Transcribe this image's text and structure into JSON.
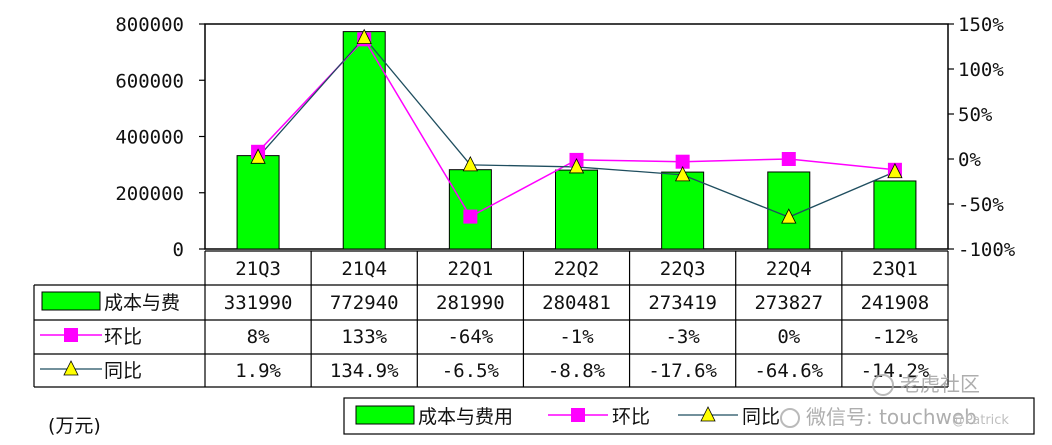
{
  "chart_data": {
    "type": "bar",
    "categories": [
      "21Q3",
      "21Q4",
      "22Q1",
      "22Q2",
      "22Q3",
      "22Q4",
      "23Q1"
    ],
    "ylim": [
      0,
      800000
    ],
    "y_ticks": [
      "800000",
      "600000",
      "400000",
      "200000",
      "0"
    ],
    "y2lim": [
      -100,
      150
    ],
    "y2_ticks": [
      "150%",
      "100%",
      "50%",
      "0%",
      "-50%",
      "-100%"
    ],
    "unit_label": "(万元)",
    "series": [
      {
        "name": "成本与费用",
        "kind": "bar",
        "values": [
          331990,
          772940,
          281990,
          280481,
          273419,
          273827,
          241908
        ],
        "labels": [
          "331990",
          "772940",
          "281990",
          "280481",
          "273419",
          "273827",
          "241908"
        ],
        "table_label": "成本与费"
      },
      {
        "name": "环比",
        "kind": "line",
        "axis": "right",
        "values": [
          8,
          133,
          -64,
          -1,
          -3,
          0,
          -12
        ],
        "labels": [
          "8%",
          "133%",
          "-64%",
          "-1%",
          "-3%",
          "0%",
          "-12%"
        ],
        "table_label": "环比"
      },
      {
        "name": "同比",
        "kind": "line",
        "axis": "right",
        "values": [
          1.9,
          134.9,
          -6.5,
          -8.8,
          -17.6,
          -64.6,
          -14.2
        ],
        "labels": [
          "1.9%",
          "134.9%",
          "-6.5%",
          "-8.8%",
          "-17.6%",
          "-64.6%",
          "-14.2%"
        ],
        "table_label": "同比"
      }
    ],
    "legend_position": "bottom",
    "legend_labels": [
      "成本与费用",
      "环比",
      "同比"
    ],
    "colors": {
      "bar": "#00ff00",
      "yoy_qoq_marker": "#ff00ff",
      "yoy_line": "#1f4e5f",
      "triangle": "#ffff00"
    }
  },
  "watermark": {
    "brand": "老虎社区",
    "wechat": "微信号: touchweb",
    "handle": "@Patrick"
  }
}
